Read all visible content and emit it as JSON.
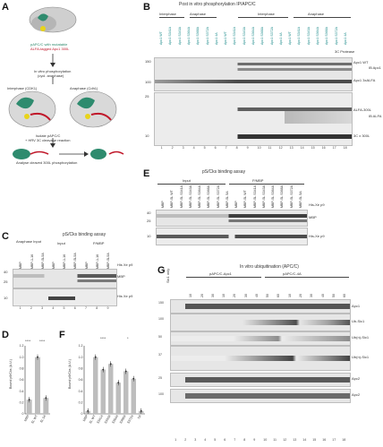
{
  "panels": {
    "A": {
      "letter": "A",
      "lines": [
        "pAPC/C with mutatable",
        "ALFA-tagged Apc1 300L",
        "In vitro phosphorylation",
        "(cycl. anaphase)",
        "Isolate pAPC/C",
        "+ HRV 3C cleavage reaction",
        "Analyse cleaved 300L phosphorylation"
      ],
      "left_box_label": "Interphase (CDK1)",
      "right_box_label": "Anaphase (Cdh1)",
      "tags": [
        "Apc1",
        "300L",
        "Cdc20",
        "CC",
        "3C"
      ]
    },
    "B": {
      "letter": "B",
      "title": "Post in vitro phosphorylation IP/APC/C",
      "groups": [
        "Interphase",
        "Anaphase",
        "Interphase",
        "Anaphase"
      ],
      "lane_labels": [
        "Apc1 WT",
        "Apc1 S341A",
        "Apc1 S343A",
        "Apc1 S364A",
        "Apc1 S368A",
        "Apc1 S372A",
        "Apc1 4A",
        "Apc1 WT",
        "Apc1 S341A",
        "Apc1 S343A",
        "Apc1 S364A",
        "Apc1 S368A",
        "Apc1 S372A",
        "Apc1 4A",
        "Apc1 WT",
        "Apc1 S341A",
        "Apc1 S343A",
        "Apc1 S364A",
        "Apc1 S368A",
        "Apc1 S372A",
        "Apc1 4A"
      ],
      "protease_label": "3C Protease",
      "markers": [
        "150",
        "100",
        "25",
        "10"
      ],
      "right_labels": [
        "Apc1 WT",
        "Apc1 3xALFA",
        "ALFA-300L",
        "3C x 300L"
      ],
      "antibodies": [
        "IB Apc1",
        "IB ALFA"
      ],
      "lane_numbers": [
        "1",
        "2",
        "3",
        "4",
        "5",
        "6",
        "7",
        "8",
        "9",
        "10",
        "11",
        "12",
        "13",
        "14",
        "15",
        "16",
        "17",
        "18"
      ]
    },
    "C": {
      "letter": "C",
      "title": "pS/Cks binding assay",
      "groups": [
        "Anaphase Input",
        "Input",
        "P/MBP"
      ],
      "lanes": [
        "MBP",
        "MBP-1-16",
        "MBP-SL5A",
        "MBP",
        "MBP-1-16",
        "MBP-SL5A",
        "MBP",
        "MBP-1-16",
        "MBP-SL5A"
      ],
      "right_labels": [
        "His Xe p9",
        "MBP",
        "His Xe p9"
      ],
      "markers": [
        "40",
        "25",
        "10"
      ],
      "lane_numbers": [
        "1",
        "2",
        "3",
        "4",
        "5",
        "6",
        "7",
        "8",
        "9"
      ]
    },
    "D": {
      "letter": "D",
      "ylabel": "Bound p9/Cks (A.U.)",
      "significance": [
        "****",
        "****"
      ],
      "chart_data": {
        "type": "bar",
        "categories": [
          "MBP",
          "SL WT",
          "SL 5A"
        ],
        "values": [
          0.25,
          1.0,
          0.28
        ],
        "ylim": [
          0,
          1.2
        ],
        "yticks": [
          "0",
          "0.2",
          "0.4",
          "0.6",
          "0.8",
          "1.0",
          "1.2"
        ]
      }
    },
    "E": {
      "letter": "E",
      "title": "pS/Cks binding assay",
      "groups": [
        "Input",
        "P/MBP"
      ],
      "lanes": [
        "MBP",
        "MBP-SL WT",
        "MBP-SL S341A",
        "MBP-SL S343A",
        "MBP-SL S364A",
        "MBP-SL S368A",
        "MBP-SL S372A",
        "MBP-SL 5A",
        "MBP",
        "MBP-SL WT",
        "MBP-SL S341A",
        "MBP-SL S343A",
        "MBP-SL S364A",
        "MBP-SL S368A",
        "MBP-SL S372A",
        "MBP-SL 5A"
      ],
      "right_labels": [
        "His-Xe p9",
        "MBP",
        "His-Xe p9"
      ],
      "markers": [
        "40",
        "25",
        "10"
      ]
    },
    "F": {
      "letter": "F",
      "ylabel": "Bound p9/Cks (A.U.)",
      "significance": [
        "****",
        "*"
      ],
      "chart_data": {
        "type": "bar",
        "categories": [
          "MBP",
          "SL WT",
          "S341A",
          "S343A",
          "S364A",
          "S368A",
          "S372A",
          "5A"
        ],
        "values": [
          0.05,
          1.0,
          0.78,
          0.88,
          0.55,
          0.75,
          0.62,
          0.05
        ],
        "ylim": [
          0,
          1.2
        ],
        "yticks": [
          "0",
          "0.2",
          "0.4",
          "0.6",
          "0.8",
          "1.0",
          "1.2"
        ]
      }
    },
    "G": {
      "letter": "G",
      "title": "In vitro ubiquitination (APC/C)",
      "groups": [
        "pAPC/C-Apc1",
        "pAPC/C-4A"
      ],
      "lanes": [
        "10",
        "20",
        "30",
        "10",
        "20",
        "30",
        "40",
        "50",
        "60",
        "10",
        "20",
        "30",
        "40",
        "50",
        "60"
      ],
      "left_tag": "Sic1 only",
      "right_labels": [
        "Apc1",
        "Ub-Sic1",
        "Ub(n)-Sic1",
        "Ub(n)-Sic1",
        "Apc2",
        "Apc2"
      ],
      "markers": [
        "150",
        "100",
        "50",
        "37",
        "25",
        "100"
      ],
      "lane_numbers": [
        "1",
        "2",
        "3",
        "4",
        "5",
        "6",
        "7",
        "8",
        "9",
        "10",
        "11",
        "12",
        "13",
        "14",
        "15",
        "16",
        "17",
        "18"
      ]
    }
  }
}
